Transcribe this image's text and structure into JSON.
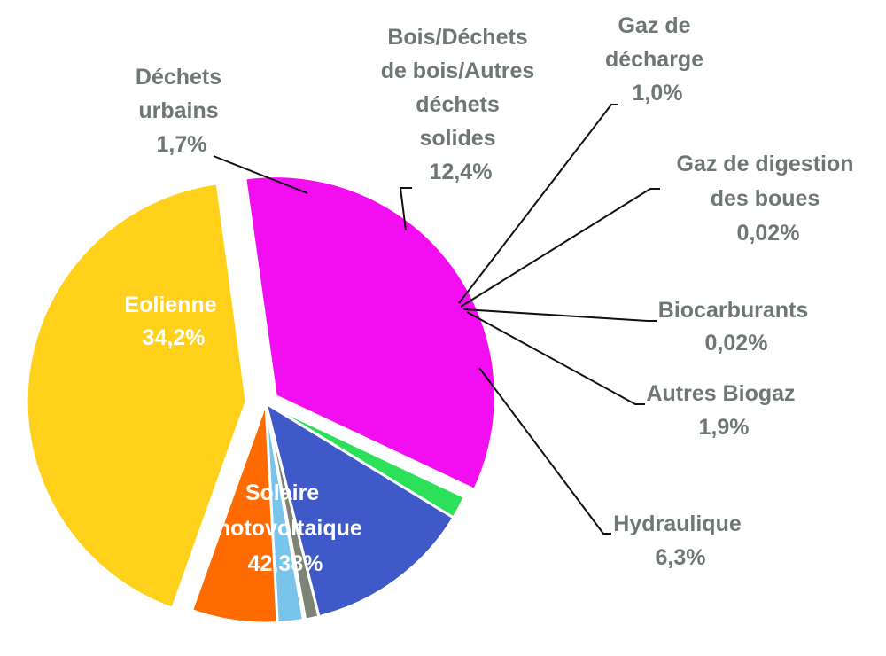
{
  "chart_data": {
    "type": "pie",
    "slices": [
      {
        "key": "eolien",
        "name": "Eolienne",
        "value": 34.2,
        "label": "34,2%",
        "color": "#f20ef0"
      },
      {
        "key": "dechets",
        "name": "Déchets urbains",
        "value": 1.7,
        "label": "1,7%",
        "color": "#2de05a"
      },
      {
        "key": "bois",
        "name": "Bois/Déchets de bois/Autres déchets solides",
        "value": 12.4,
        "label": "12,4%",
        "color": "#3f5ac8"
      },
      {
        "key": "gazdech",
        "name": "Gaz de décharge",
        "value": 1.0,
        "label": "1,0%",
        "color": "#7d8476"
      },
      {
        "key": "boues",
        "name": "Gaz de digestion des boues",
        "value": 0.02,
        "label": "0,02%",
        "color": "#9fb0a0"
      },
      {
        "key": "biocarb",
        "name": "Biocarburants",
        "value": 0.02,
        "label": "0,02%",
        "color": "#4aa0d0"
      },
      {
        "key": "biogaz",
        "name": "Autres Biogaz",
        "value": 1.9,
        "label": "1,9%",
        "color": "#78c4ea"
      },
      {
        "key": "hydro",
        "name": "Hydraulique",
        "value": 6.3,
        "label": "6,3%",
        "color": "#ff6b00"
      },
      {
        "key": "solaire",
        "name": "Solaire Photovoltaique",
        "value": 42.38,
        "label": "42,38%",
        "color": "#ffd11a"
      }
    ],
    "labels": {
      "eolien": [
        "Eolienne",
        "34,2%"
      ],
      "dechets": [
        "Déchets",
        "urbains",
        "1,7%"
      ],
      "bois": [
        "Bois/Déchets",
        "de bois/Autres",
        "déchets",
        "solides",
        "12,4%"
      ],
      "gazdech": [
        "Gaz de",
        "décharge",
        "1,0%"
      ],
      "boues": [
        "Gaz de digestion",
        "des boues",
        "0,02%"
      ],
      "biocarb": [
        "Biocarburants",
        "0,02%"
      ],
      "biogaz": [
        "Autres Biogaz",
        "1,9%"
      ],
      "hydro": [
        "Hydraulique",
        "6,3%"
      ],
      "solaire": [
        "Solaire",
        "Photovoltaique",
        "42,38%"
      ]
    }
  }
}
